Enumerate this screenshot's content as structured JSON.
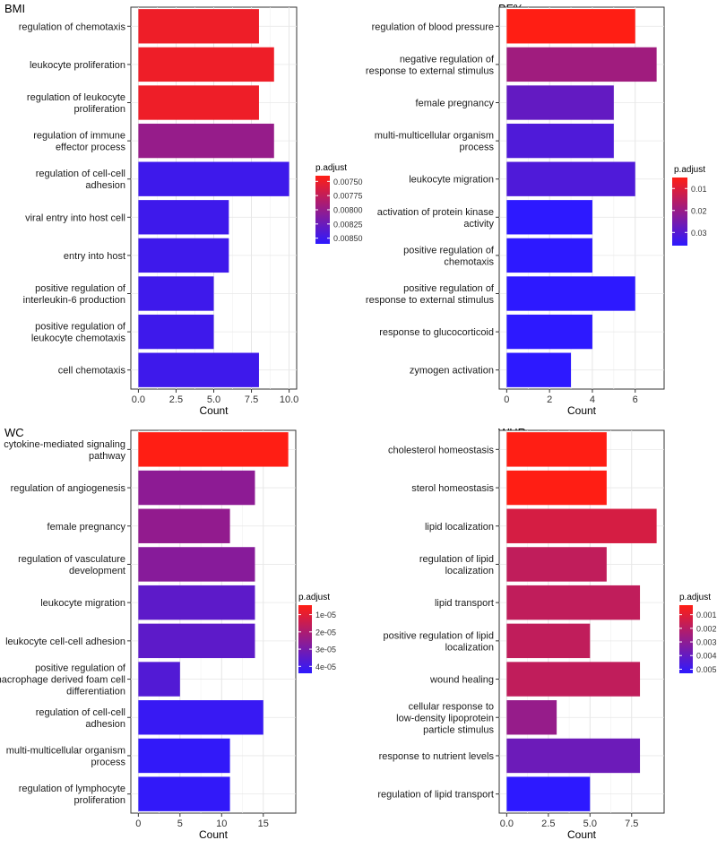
{
  "legend_title": "p.adjust",
  "xlabel": "Count",
  "chart_data": [
    {
      "type": "bar",
      "orientation": "horizontal",
      "title": "BMI",
      "xlabel": "Count",
      "xlim": [
        0,
        10
      ],
      "xticks": [
        0,
        2.5,
        5,
        7.5,
        10
      ],
      "xtick_labels": [
        "0.0",
        "2.5",
        "5.0",
        "7.5",
        "10.0"
      ],
      "categories": [
        [
          "regulation of chemotaxis"
        ],
        [
          "leukocyte proliferation"
        ],
        [
          "regulation of leukocyte",
          "proliferation"
        ],
        [
          "regulation of immune",
          "effector process"
        ],
        [
          "regulation of cell-cell",
          "adhesion"
        ],
        [
          "viral entry into host cell"
        ],
        [
          "entry into host"
        ],
        [
          "positive regulation of",
          "interleukin-6 production"
        ],
        [
          "positive regulation of",
          "leukocyte chemotaxis"
        ],
        [
          "cell chemotaxis"
        ]
      ],
      "values": [
        8,
        9,
        8,
        9,
        10,
        6,
        6,
        5,
        5,
        8
      ],
      "p_adjust": [
        0.0075,
        0.0075,
        0.0075,
        0.008,
        0.0085,
        0.0085,
        0.0085,
        0.0085,
        0.0085,
        0.0085
      ],
      "legend": {
        "title": "p.adjust",
        "min": 0.0074,
        "max": 0.0086,
        "tick_values": [
          0.0075,
          0.00775,
          0.008,
          0.00825,
          0.0085
        ],
        "tick_labels": [
          "0.00750",
          "0.00775",
          "0.00800",
          "0.00825",
          "0.00850"
        ]
      }
    },
    {
      "type": "bar",
      "orientation": "horizontal",
      "title": "BF%",
      "xlabel": "Count",
      "xlim": [
        0,
        7
      ],
      "xticks": [
        0,
        2,
        4,
        6
      ],
      "xtick_labels": [
        "0",
        "2",
        "4",
        "6"
      ],
      "categories": [
        [
          "regulation of blood pressure"
        ],
        [
          "negative regulation of",
          "response to external stimulus"
        ],
        [
          "female pregnancy"
        ],
        [
          "multi-multicellular organism",
          "process"
        ],
        [
          "leukocyte migration"
        ],
        [
          "activation of protein kinase",
          "activity"
        ],
        [
          "positive regulation of",
          "chemotaxis"
        ],
        [
          "positive regulation of",
          "response to external stimulus"
        ],
        [
          "response to glucocorticoid"
        ],
        [
          "zymogen activation"
        ]
      ],
      "values": [
        6,
        7,
        5,
        5,
        6,
        4,
        4,
        6,
        4,
        3
      ],
      "p_adjust": [
        0.005,
        0.019,
        0.028,
        0.031,
        0.031,
        0.036,
        0.036,
        0.036,
        0.036,
        0.036
      ],
      "legend": {
        "title": "p.adjust",
        "min": 0.005,
        "max": 0.036,
        "tick_values": [
          0.01,
          0.02,
          0.03
        ],
        "tick_labels": [
          "0.01",
          "0.02",
          "0.03"
        ]
      }
    },
    {
      "type": "bar",
      "orientation": "horizontal",
      "title": "WC",
      "xlabel": "Count",
      "xlim": [
        0,
        18
      ],
      "xticks": [
        0,
        5,
        10,
        15
      ],
      "xtick_labels": [
        "0",
        "5",
        "10",
        "15"
      ],
      "categories": [
        [
          "cytokine-mediated signaling",
          "pathway"
        ],
        [
          "regulation of angiogenesis"
        ],
        [
          "female pregnancy"
        ],
        [
          "regulation of vasculature",
          "development"
        ],
        [
          "leukocyte migration"
        ],
        [
          "leukocyte cell-cell adhesion"
        ],
        [
          "positive regulation of",
          "macrophage derived foam cell",
          "differentiation"
        ],
        [
          "regulation of cell-cell",
          "adhesion"
        ],
        [
          "multi-multicellular organism",
          "process"
        ],
        [
          "regulation of lymphocyte",
          "proliferation"
        ]
      ],
      "values": [
        18,
        14,
        11,
        14,
        14,
        14,
        5,
        15,
        11,
        11
      ],
      "p_adjust": [
        4.5e-06,
        2.6e-05,
        2.5e-05,
        2.7e-05,
        3.5e-05,
        3.5e-05,
        3.7e-05,
        4.2e-05,
        4.3e-05,
        4.3e-05
      ],
      "legend": {
        "title": "p.adjust",
        "min": 4.5e-06,
        "max": 4.4e-05,
        "tick_values": [
          1e-05,
          2e-05,
          3e-05,
          4e-05
        ],
        "tick_labels": [
          "1e-05",
          "2e-05",
          "3e-05",
          "4e-05"
        ]
      }
    },
    {
      "type": "bar",
      "orientation": "horizontal",
      "title": "WHR",
      "xlabel": "Count",
      "xlim": [
        0,
        9
      ],
      "xticks": [
        0,
        2.5,
        5,
        7.5
      ],
      "xtick_labels": [
        "0.0",
        "2.5",
        "5.0",
        "7.5"
      ],
      "categories": [
        [
          "cholesterol homeostasis"
        ],
        [
          "sterol homeostasis"
        ],
        [
          "lipid localization"
        ],
        [
          "regulation of lipid",
          "localization"
        ],
        [
          "lipid transport"
        ],
        [
          "positive regulation of lipid",
          "localization"
        ],
        [
          "wound healing"
        ],
        [
          "cellular response to",
          "low-density lipoprotein",
          "particle stimulus"
        ],
        [
          "response to nutrient levels"
        ],
        [
          "regulation of lipid transport"
        ]
      ],
      "values": [
        6,
        6,
        9,
        6,
        8,
        5,
        8,
        3,
        8,
        5
      ],
      "p_adjust": [
        0.0003,
        0.0003,
        0.0013,
        0.0018,
        0.0018,
        0.0018,
        0.0018,
        0.0028,
        0.0038,
        0.0053
      ],
      "legend": {
        "title": "p.adjust",
        "min": 0.0003,
        "max": 0.0053,
        "tick_values": [
          0.001,
          0.002,
          0.003,
          0.004,
          0.005
        ],
        "tick_labels": [
          "0.001",
          "0.002",
          "0.003",
          "0.004",
          "0.005"
        ]
      }
    }
  ]
}
